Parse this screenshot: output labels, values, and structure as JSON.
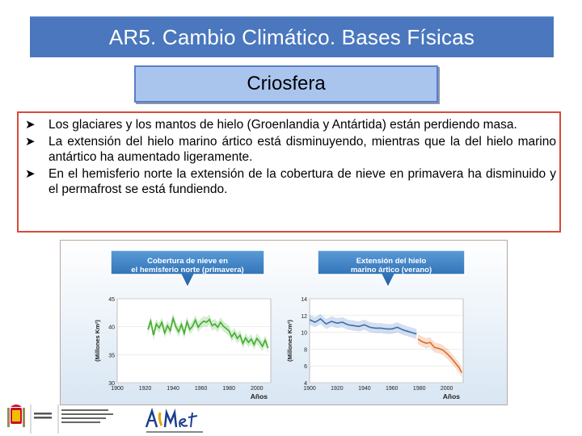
{
  "header": {
    "title": "AR5. Cambio Climático. Bases Físicas"
  },
  "subtitle": "Criosfera",
  "bullets": [
    "Los glaciares y los mantos de hielo (Groenlandia y Antártida) están perdiendo masa.",
    "La extensión del hielo marino ártico está disminuyendo, mientras que la del hielo marino antártico ha aumentado ligeramente.",
    "En el hemisferio norte la extensión de la cobertura de nieve en primavera ha disminuido y el permafrost se está fundiendo."
  ],
  "colors": {
    "header_bg": "#4a77bd",
    "subtitle_bg": "#a9c5ee",
    "bullet_border": "#d64b3b",
    "snow_series": "#3fae2a",
    "ice_series_obs": "#3a6db5",
    "ice_series_recent": "#e06a1e"
  },
  "icons": [
    "arrow-bullet-icon",
    "spain-coat-of-arms-icon",
    "aemet-logo-icon"
  ],
  "chart_data": [
    {
      "type": "line",
      "title": "Cobertura de nieve en el hemisferio norte (primavera)",
      "ylabel": "(Millones Km²)",
      "xlabel": "Años",
      "xlim": [
        1900,
        2010
      ],
      "ylim": [
        30,
        45
      ],
      "yticks": [
        30,
        35,
        40,
        45
      ],
      "xticks": [
        1900,
        1920,
        1940,
        1960,
        1980,
        2000
      ],
      "series": [
        {
          "x": [
            1922,
            1924,
            1926,
            1928,
            1930,
            1932,
            1934,
            1936,
            1938,
            1940,
            1942,
            1944,
            1946,
            1948,
            1950,
            1952,
            1954,
            1956,
            1958,
            1960,
            1962,
            1964,
            1966,
            1968,
            1970,
            1972,
            1974,
            1976,
            1978,
            1980,
            1982,
            1984,
            1986,
            1988,
            1990,
            1992,
            1994,
            1996,
            1998,
            2000,
            2002,
            2004,
            2006,
            2008
          ],
          "y": [
            39.5,
            41.0,
            38.5,
            40.5,
            39.8,
            40.8,
            38.9,
            40.2,
            39.3,
            41.5,
            40.0,
            39.1,
            40.4,
            38.8,
            40.9,
            39.5,
            40.1,
            41.2,
            39.9,
            40.6,
            41.0,
            40.8,
            41.3,
            40.2,
            40.5,
            39.9,
            40.8,
            40.1,
            39.7,
            39.3,
            38.2,
            38.9,
            37.9,
            38.5,
            37.0,
            38.0,
            37.2,
            37.8,
            36.8,
            37.9,
            37.3,
            36.5,
            37.6,
            36.2
          ]
        }
      ]
    },
    {
      "type": "line",
      "title": "Extensión del hielo marino ártico (verano)",
      "ylabel": "(Millones Km²)",
      "xlabel": "Años",
      "xlim": [
        1900,
        2012
      ],
      "ylim": [
        4,
        14
      ],
      "yticks": [
        4,
        6,
        8,
        10,
        12,
        14
      ],
      "xticks": [
        1900,
        1920,
        1940,
        1960,
        1980,
        2000
      ],
      "series": [
        {
          "x": [
            1900,
            1904,
            1908,
            1912,
            1916,
            1920,
            1924,
            1928,
            1932,
            1936,
            1940,
            1944,
            1948,
            1952,
            1956,
            1960,
            1964,
            1968,
            1972,
            1976,
            1978
          ],
          "y": [
            11.5,
            11.2,
            11.6,
            11.0,
            11.3,
            11.1,
            11.2,
            10.9,
            10.8,
            10.7,
            10.9,
            10.6,
            10.5,
            10.5,
            10.4,
            10.4,
            10.6,
            10.3,
            10.1,
            9.9,
            9.8
          ]
        },
        {
          "x": [
            1979,
            1982,
            1985,
            1988,
            1991,
            1994,
            1997,
            2000,
            2003,
            2006,
            2009,
            2011
          ],
          "y": [
            9.2,
            8.9,
            8.7,
            8.8,
            8.2,
            8.1,
            7.9,
            7.5,
            7.0,
            6.4,
            5.8,
            5.2
          ]
        }
      ]
    }
  ]
}
